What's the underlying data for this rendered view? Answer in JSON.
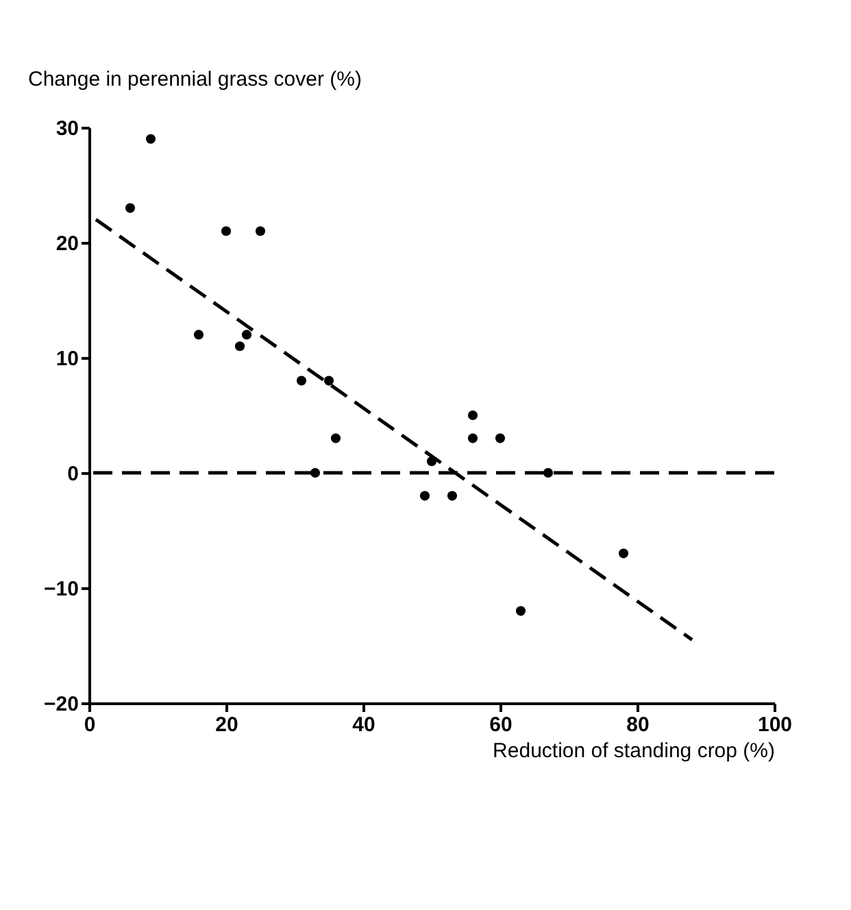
{
  "chart_data": {
    "type": "scatter",
    "xlabel": "Reduction of standing crop (%)",
    "ylabel": "Change in perennial grass cover (%)",
    "x": [
      6,
      9,
      16,
      20,
      22,
      23,
      25,
      31,
      33,
      35,
      36,
      49,
      50,
      53,
      56,
      56,
      60,
      63,
      67,
      78
    ],
    "series": [
      {
        "color": "#000000",
        "marker": "circle",
        "values": [
          23,
          29,
          12,
          21,
          11,
          12,
          21,
          8,
          0,
          8,
          3,
          -2,
          1,
          -2,
          5,
          3,
          3,
          -12,
          0,
          -7
        ]
      },
      {
        "type": "line",
        "color": "#000000",
        "line_style": "dashed",
        "x": [
          1,
          88
        ],
        "values": [
          22,
          -14.5
        ]
      }
    ],
    "ref_lines": [
      {
        "axis": "y",
        "value": 0,
        "color": "#000000",
        "line_style": "dashed"
      }
    ],
    "xlim": [
      0,
      100
    ],
    "ylim": [
      -20,
      30
    ],
    "xticks": [
      0,
      20,
      40,
      60,
      80,
      100
    ],
    "yticks": [
      -20,
      -10,
      0,
      10,
      20,
      30
    ],
    "grid": false
  }
}
